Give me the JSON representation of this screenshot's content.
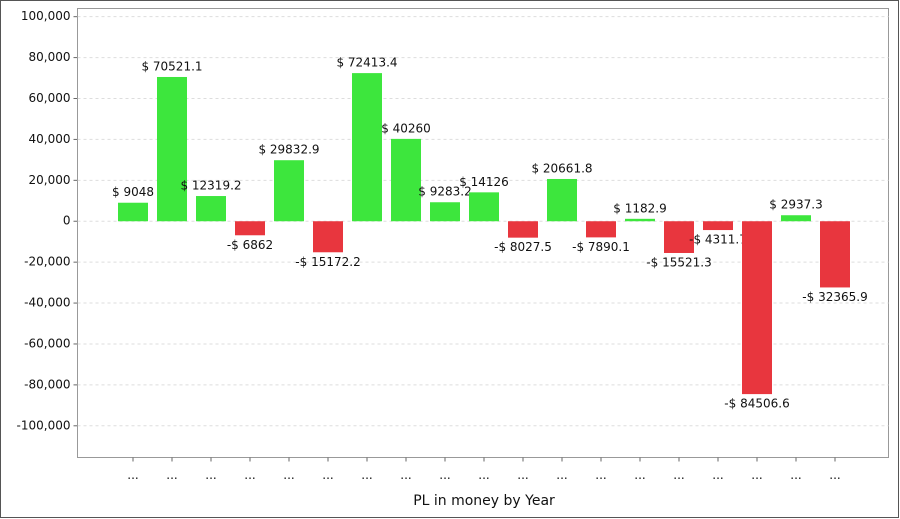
{
  "chart_data": {
    "type": "bar",
    "x_label": "PL in money by Year",
    "categories": [
      "...",
      "...",
      "...",
      "...",
      "...",
      "...",
      "...",
      "...",
      "...",
      "...",
      "...",
      "...",
      "...",
      "...",
      "...",
      "...",
      "...",
      "...",
      "..."
    ],
    "values": [
      9048,
      70521.1,
      12319.2,
      -6862,
      29832.9,
      -15172.2,
      72413.4,
      40260,
      9283.2,
      14126,
      -8027.5,
      20661.8,
      -7890.1,
      1182.9,
      -15521.3,
      -4311.7,
      -84506.6,
      2937.3,
      -32365.9
    ],
    "value_labels": [
      "$ 9048",
      "$ 70521.1",
      "$ 12319.2",
      "-$ 6862",
      "$ 29832.9",
      "-$ 15172.2",
      "$ 72413.4",
      "$ 40260",
      "$ 9283.2",
      "$ 14126",
      "-$ 8027.5",
      "$ 20661.8",
      "-$ 7890.1",
      "$ 1182.9",
      "-$ 15521.3",
      "-$ 4311.7",
      "-$ 84506.6",
      "$ 2937.3",
      "-$ 32365.9"
    ],
    "color_positive": "#3de63d",
    "color_negative": "#e8363e",
    "ylim": [
      -115500,
      104000
    ],
    "yticks": [
      {
        "value": 100000,
        "label": "100,000"
      },
      {
        "value": 80000,
        "label": "80,000"
      },
      {
        "value": 60000,
        "label": "60,000"
      },
      {
        "value": 40000,
        "label": "40,000"
      },
      {
        "value": 20000,
        "label": "20,000"
      },
      0,
      {
        "value": -20000,
        "label": "-20,000"
      },
      {
        "value": -40000,
        "label": "-40,000"
      },
      {
        "value": -60000,
        "label": "-60,000"
      },
      {
        "value": -80000,
        "label": "-80,000"
      },
      {
        "value": -100000,
        "label": "-100,000"
      }
    ],
    "grid": true
  }
}
